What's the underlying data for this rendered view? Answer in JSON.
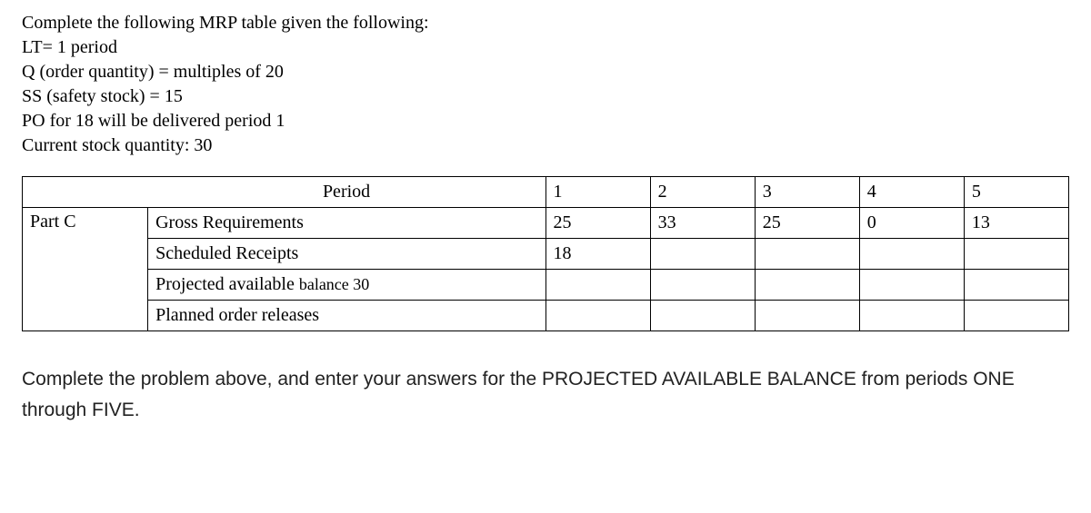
{
  "intro": {
    "line1": "Complete the following MRP table given the following:",
    "line2": "LT= 1 period",
    "line3": "Q (order quantity) = multiples of 20",
    "line4": "SS (safety stock) = 15",
    "line5": "PO for 18 will be delivered period 1",
    "line6": "Current stock quantity: 30"
  },
  "table": {
    "period_label": "Period",
    "periods": [
      "1",
      "2",
      "3",
      "4",
      "5"
    ],
    "part_label": "Part C",
    "rows": {
      "gross_requirements": {
        "label": "Gross Requirements",
        "values": [
          "25",
          "33",
          "25",
          "0",
          "13"
        ]
      },
      "scheduled_receipts": {
        "label": "Scheduled Receipts",
        "values": [
          "18",
          "",
          "",
          "",
          ""
        ]
      },
      "projected_available_balance": {
        "label_main": "Projected available ",
        "label_suffix": "balance  30",
        "values": [
          "",
          "",
          "",
          "",
          ""
        ]
      },
      "planned_order_releases": {
        "label": "Planned order releases",
        "values": [
          "",
          "",
          "",
          "",
          ""
        ]
      }
    }
  },
  "instruction": "Complete the problem above, and enter your answers for the PROJECTED AVAILABLE BALANCE from periods ONE through FIVE."
}
